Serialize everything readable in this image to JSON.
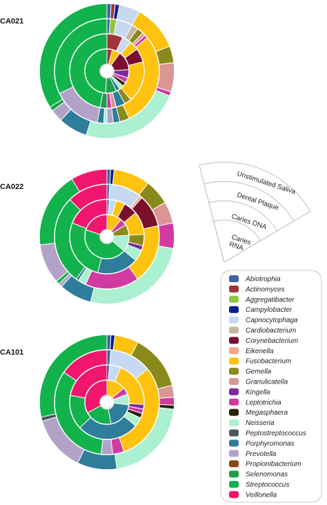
{
  "chart_data": {
    "type": "pie",
    "rings": [
      "Unstimulated Saliva",
      "Dental Plaque",
      "Caries DNA",
      "Caries RNA"
    ],
    "legend": {
      "placement": "bottom-right",
      "entries": [
        {
          "name": "Abiotrophia",
          "color": "#3a62a7"
        },
        {
          "name": "Actinomyces",
          "color": "#a0343a"
        },
        {
          "name": "Aggregatibacter",
          "color": "#8ec63f"
        },
        {
          "name": "Campylobacter",
          "color": "#0d1f8c"
        },
        {
          "name": "Capnocytophaga",
          "color": "#c6d9f0"
        },
        {
          "name": "Cardiobacterium",
          "color": "#c3b89b"
        },
        {
          "name": "Corynebacterium",
          "color": "#7b0f2e"
        },
        {
          "name": "Eikenella",
          "color": "#f4a582"
        },
        {
          "name": "Fusobacterium",
          "color": "#ffc20e"
        },
        {
          "name": "Gemella",
          "color": "#8a8a1c"
        },
        {
          "name": "Granulicatella",
          "color": "#d99694"
        },
        {
          "name": "Kingella",
          "color": "#7a2b9e"
        },
        {
          "name": "Leptotrichia",
          "color": "#d13aa1"
        },
        {
          "name": "Megasphaera",
          "color": "#2b2308"
        },
        {
          "name": "Neisseria",
          "color": "#aaf0d1"
        },
        {
          "name": "Peptostreptococcus",
          "color": "#4a5a5c"
        },
        {
          "name": "Porphyromonas",
          "color": "#2e7d9a"
        },
        {
          "name": "Prevotella",
          "color": "#b3a2c7"
        },
        {
          "name": "Propionibacterium",
          "color": "#8b4513"
        },
        {
          "name": "Selenomonas",
          "color": "#1e9e4a"
        },
        {
          "name": "Streptococcus",
          "color": "#12b24c"
        },
        {
          "name": "Veillonella",
          "color": "#f0166e"
        }
      ]
    },
    "samples": [
      {
        "label": "CA021",
        "rings": [
          [
            [
              "Abiotrophia",
              1
            ],
            [
              "Actinomyces",
              1
            ],
            [
              "Campylobacter",
              1
            ],
            [
              "Capnocytophaga",
              5
            ],
            [
              "Fusobacterium",
              11
            ],
            [
              "Gemella",
              4
            ],
            [
              "Granulicatella",
              7
            ],
            [
              "Leptotrichia",
              1
            ],
            [
              "Neisseria",
              24
            ],
            [
              "Porphyromonas",
              7
            ],
            [
              "Prevotella",
              3
            ],
            [
              "Selenomonas",
              1
            ],
            [
              "Streptococcus",
              34
            ],
            [
              "Veillonella",
              0
            ]
          ],
          [
            [
              "Abiotrophia",
              1
            ],
            [
              "Aggregatibacter",
              2
            ],
            [
              "Capnocytophaga",
              5
            ],
            [
              "Cardiobacterium",
              2
            ],
            [
              "Gemella",
              2
            ],
            [
              "Granulicatella",
              1
            ],
            [
              "Leptotrichia",
              1
            ],
            [
              "Fusobacterium",
              29
            ],
            [
              "Gemella",
              3
            ],
            [
              "Porphyromonas",
              2
            ],
            [
              "Prevotella",
              2
            ],
            [
              "Neisseria",
              1
            ],
            [
              "Porphyromonas",
              2
            ],
            [
              "Prevotella",
              15
            ],
            [
              "Streptococcus",
              32
            ]
          ],
          [
            [
              "Actinomyces",
              7
            ],
            [
              "Capnocytophaga",
              4
            ],
            [
              "Fusobacterium",
              4
            ],
            [
              "Corynebacterium",
              6
            ],
            [
              "Fusobacterium",
              18
            ],
            [
              "Gemella",
              3
            ],
            [
              "Porphyromonas",
              4
            ],
            [
              "Granulicatella",
              2
            ],
            [
              "Leptotrichia",
              2
            ],
            [
              "Selenomonas",
              3
            ],
            [
              "Streptococcus",
              47
            ]
          ],
          [
            [
              "Actinomyces",
              4
            ],
            [
              "Fusobacterium",
              6
            ],
            [
              "Corynebacterium",
              14
            ],
            [
              "Kingella",
              6
            ],
            [
              "Leptotrichia",
              4
            ],
            [
              "Megasphaera",
              3
            ],
            [
              "Neisseria",
              3
            ],
            [
              "Porphyromonas",
              3
            ],
            [
              "Selenomonas",
              8
            ],
            [
              "Streptococcus",
              49
            ]
          ]
        ]
      },
      {
        "label": "CA022",
        "rings": [
          [
            [
              "Abiotrophia",
              1
            ],
            [
              "Campylobacter",
              1
            ],
            [
              "Fusobacterium",
              10
            ],
            [
              "Gemella",
              7
            ],
            [
              "Granulicatella",
              6
            ],
            [
              "Leptotrichia",
              7
            ],
            [
              "Neisseria",
              30
            ],
            [
              "Porphyromonas",
              9
            ],
            [
              "Prevotella",
              1
            ],
            [
              "Streptococcus",
              1
            ],
            [
              "Prevotella",
              11
            ],
            [
              "Streptococcus",
              21
            ],
            [
              "Veillonella",
              10
            ]
          ],
          [
            [
              "Abiotrophia",
              1
            ],
            [
              "Capnocytophaga",
              12
            ],
            [
              "Eikenella",
              1
            ],
            [
              "Corynebacterium",
              12
            ],
            [
              "Fusobacterium",
              22
            ],
            [
              "Leptotrichia",
              20
            ],
            [
              "Neisseria",
              3
            ],
            [
              "Porphyromonas",
              1
            ],
            [
              "Streptococcus",
              33
            ],
            [
              "Veillonella",
              15
            ]
          ],
          [
            [
              "Abiotrophia",
              1
            ],
            [
              "Capnocytophaga",
              3
            ],
            [
              "Fusobacterium",
              4
            ],
            [
              "Corynebacterium",
              6
            ],
            [
              "Fusobacterium",
              10
            ],
            [
              "Gemella",
              5
            ],
            [
              "Kingella",
              2
            ],
            [
              "Neisseria",
              5
            ],
            [
              "Porphyromonas",
              18
            ],
            [
              "Streptococcus",
              27
            ],
            [
              "Veillonella",
              19
            ]
          ],
          [
            [
              "Fusobacterium",
              11
            ],
            [
              "Leptotrichia",
              5
            ],
            [
              "Gemella",
              8
            ],
            [
              "Neisseria",
              12
            ],
            [
              "Streptococcus",
              44
            ],
            [
              "Veillonella",
              20
            ]
          ]
        ]
      },
      {
        "label": "CA101",
        "rings": [
          [
            [
              "Abiotrophia",
              1
            ],
            [
              "Campylobacter",
              1
            ],
            [
              "Fusobacterium",
              6
            ],
            [
              "Gemella",
              14
            ],
            [
              "Granulicatella",
              3
            ],
            [
              "Leptotrichia",
              2
            ],
            [
              "Megasphaera",
              1
            ],
            [
              "Neisseria",
              22
            ],
            [
              "Porphyromonas",
              10
            ],
            [
              "Prevotella",
              14
            ],
            [
              "Peptostreptococcus",
              1
            ],
            [
              "Streptococcus",
              30
            ],
            [
              "Veillonella",
              0
            ]
          ],
          [
            [
              "Abiotrophia",
              1
            ],
            [
              "Capnocytophaga",
              11
            ],
            [
              "Fusobacterium",
              26
            ],
            [
              "Leptotrichia",
              3
            ],
            [
              "Prevotella",
              3
            ],
            [
              "Streptococcus",
              28
            ],
            [
              "Veillonella",
              13
            ],
            [
              "Fusobacterium",
              0
            ]
          ],
          [
            [
              "Campylobacter",
              1
            ],
            [
              "Capnocytophaga",
              5
            ],
            [
              "Fusobacterium",
              20
            ],
            [
              "Kingella",
              2
            ],
            [
              "Leptotrichia",
              2
            ],
            [
              "Megasphaera",
              2
            ],
            [
              "Neisseria",
              4
            ],
            [
              "Porphyromonas",
              27
            ],
            [
              "Streptococcus",
              15
            ],
            [
              "Veillonella",
              22
            ]
          ],
          [
            [
              "Fusobacterium",
              14
            ],
            [
              "Leptotrichia",
              5
            ],
            [
              "Neisseria",
              8
            ],
            [
              "Porphyromonas",
              20
            ],
            [
              "Streptococcus",
              20
            ],
            [
              "Veillonella",
              33
            ]
          ]
        ]
      }
    ]
  }
}
